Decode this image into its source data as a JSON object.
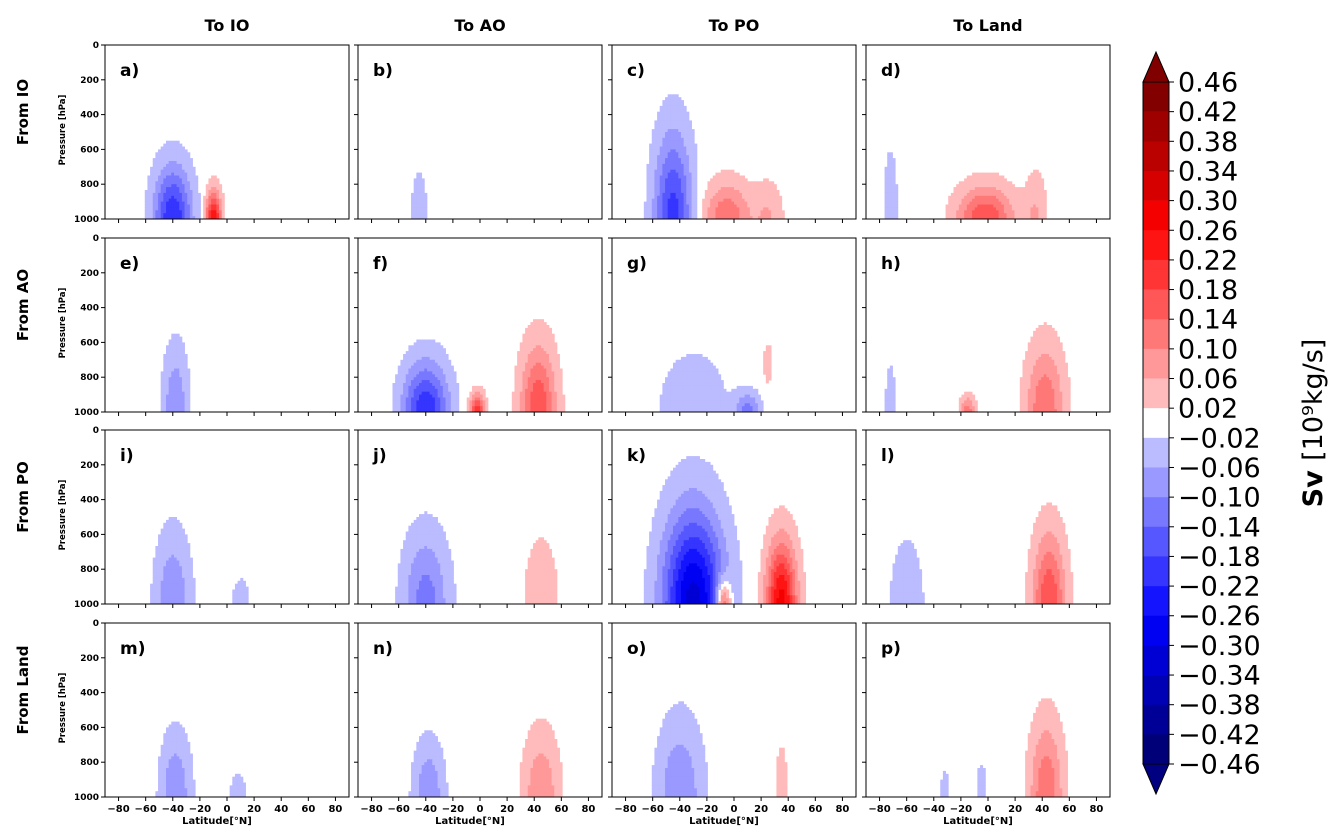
{
  "chart_data": {
    "type": "contour",
    "layout": "4x4 panel grid",
    "col_titles": [
      "To IO",
      "To AO",
      "To PO",
      "To Land"
    ],
    "row_titles": [
      "From IO",
      "From AO",
      "From PO",
      "From Land"
    ],
    "panel_labels": [
      "a)",
      "b)",
      "c)",
      "d)",
      "e)",
      "f)",
      "g)",
      "h)",
      "i)",
      "j)",
      "k)",
      "l)",
      "m)",
      "n)",
      "o)",
      "p)"
    ],
    "xlabel": "Latitude[$^\\circ N$]",
    "xlabel_display": "Latitude[°N]",
    "ylabel": "Pressure [hPa]",
    "xlim": [
      -90,
      90
    ],
    "ylim": [
      1000,
      0
    ],
    "x_ticks": [
      -80,
      -60,
      -40,
      -20,
      0,
      20,
      40,
      60,
      80
    ],
    "x_tick_labels": [
      "−80",
      "−60",
      "−40",
      "−20",
      "0",
      "20",
      "40",
      "60",
      "80"
    ],
    "y_ticks": [
      0,
      200,
      400,
      600,
      800,
      1000
    ],
    "y_tick_labels": [
      "0",
      "200",
      "400",
      "600",
      "800",
      "1000"
    ],
    "colorbar": {
      "label_bold": "Sv ",
      "label_units": "[10⁹kg/s]",
      "tick_labels": [
        "0.46",
        "0.42",
        "0.38",
        "0.34",
        "0.30",
        "0.26",
        "0.22",
        "0.18",
        "0.14",
        "0.10",
        "0.06",
        "0.02",
        "−0.02",
        "−0.06",
        "−0.10",
        "−0.14",
        "−0.18",
        "−0.22",
        "−0.26",
        "−0.30",
        "−0.34",
        "−0.38",
        "−0.42",
        "−0.46"
      ],
      "levels": [
        -0.46,
        -0.42,
        -0.38,
        -0.34,
        -0.3,
        -0.26,
        -0.22,
        -0.18,
        -0.14,
        -0.1,
        -0.06,
        -0.02,
        0.02,
        0.06,
        0.1,
        0.14,
        0.18,
        0.22,
        0.26,
        0.3,
        0.34,
        0.38,
        0.42,
        0.46
      ],
      "extend": "both",
      "colormap": "seismic"
    },
    "cells": [
      [
        {
          "id": "a",
          "cells": [
            {
              "x": -40,
              "p": 1000,
              "sx": 15,
              "sp": 320,
              "a": -0.22
            },
            {
              "x": -10,
              "p": 1000,
              "sx": 6,
              "sp": 170,
              "a": 0.26
            }
          ]
        },
        {
          "id": "b",
          "cells": [
            {
              "x": -45,
              "p": 1000,
              "sx": 7,
              "sp": 300,
              "a": -0.05
            }
          ]
        },
        {
          "id": "c",
          "cells": [
            {
              "x": -45,
              "p": 1000,
              "sx": 15,
              "sp": 520,
              "a": -0.2
            },
            {
              "x": -5,
              "p": 1000,
              "sx": 18,
              "sp": 220,
              "a": 0.14
            },
            {
              "x": 25,
              "p": 1000,
              "sx": 12,
              "sp": 230,
              "a": 0.06
            }
          ]
        },
        {
          "id": "d",
          "cells": [
            {
              "x": -72,
              "p": 1000,
              "sx": 6,
              "sp": 450,
              "a": -0.05
            },
            {
              "x": -2,
              "p": 1000,
              "sx": 22,
              "sp": 200,
              "a": 0.18
            },
            {
              "x": 35,
              "p": 1000,
              "sx": 9,
              "sp": 290,
              "a": 0.06
            }
          ]
        }
      ],
      [
        {
          "id": "e",
          "cells": [
            {
              "x": -38,
              "p": 1000,
              "sx": 10,
              "sp": 390,
              "a": -0.1
            }
          ]
        },
        {
          "id": "f",
          "cells": [
            {
              "x": -40,
              "p": 1000,
              "sx": 18,
              "sp": 300,
              "a": -0.22
            },
            {
              "x": -2,
              "p": 1000,
              "sx": 6,
              "sp": 110,
              "a": 0.22
            },
            {
              "x": 43,
              "p": 1000,
              "sx": 14,
              "sp": 400,
              "a": 0.18
            }
          ]
        },
        {
          "id": "g",
          "cells": [
            {
              "x": -30,
              "p": 980,
              "sx": 28,
              "sp": 360,
              "a": -0.05
            },
            {
              "x": 10,
              "p": 1000,
              "sx": 10,
              "sp": 120,
              "a": -0.12
            },
            {
              "x": 25,
              "p": 720,
              "sx": 4,
              "sp": 150,
              "a": 0.04
            }
          ]
        },
        {
          "id": "h",
          "cells": [
            {
              "x": -72,
              "p": 1000,
              "sx": 5,
              "sp": 360,
              "a": -0.04
            },
            {
              "x": -15,
              "p": 1000,
              "sx": 6,
              "sp": 100,
              "a": 0.12
            },
            {
              "x": 42,
              "p": 1000,
              "sx": 15,
              "sp": 400,
              "a": 0.14
            }
          ]
        }
      ],
      [
        {
          "id": "i",
          "cells": [
            {
              "x": -40,
              "p": 1000,
              "sx": 14,
              "sp": 430,
              "a": -0.1
            },
            {
              "x": 10,
              "p": 1000,
              "sx": 8,
              "sp": 190,
              "a": -0.04
            }
          ]
        },
        {
          "id": "j",
          "cells": [
            {
              "x": -40,
              "p": 1000,
              "sx": 18,
              "sp": 430,
              "a": -0.12
            },
            {
              "x": 45,
              "p": 1000,
              "sx": 13,
              "sp": 400,
              "a": 0.06
            }
          ]
        },
        {
          "id": "k",
          "cells": [
            {
              "x": -30,
              "p": 1000,
              "sx": 24,
              "sp": 560,
              "a": -0.32
            },
            {
              "x": -8,
              "p": 1000,
              "sx": 6,
              "sp": 150,
              "a": 0.22
            },
            {
              "x": 35,
              "p": 1000,
              "sx": 12,
              "sp": 380,
              "a": 0.28
            }
          ]
        },
        {
          "id": "l",
          "cells": [
            {
              "x": -60,
              "p": 1000,
              "sx": 14,
              "sp": 420,
              "a": -0.05
            },
            {
              "x": 45,
              "p": 1000,
              "sx": 13,
              "sp": 430,
              "a": 0.18
            }
          ]
        }
      ],
      [
        {
          "id": "m",
          "cells": [
            {
              "x": -38,
              "p": 1000,
              "sx": 12,
              "sp": 380,
              "a": -0.1
            },
            {
              "x": 8,
              "p": 1000,
              "sx": 8,
              "sp": 170,
              "a": -0.04
            }
          ]
        },
        {
          "id": "n",
          "cells": [
            {
              "x": -38,
              "p": 1000,
              "sx": 12,
              "sp": 330,
              "a": -0.1
            },
            {
              "x": 45,
              "p": 1000,
              "sx": 14,
              "sp": 390,
              "a": 0.1
            }
          ]
        },
        {
          "id": "o",
          "cells": [
            {
              "x": -40,
              "p": 1000,
              "sx": 18,
              "sp": 470,
              "a": -0.1
            },
            {
              "x": 35,
              "p": 1000,
              "sx": 5,
              "sp": 330,
              "a": 0.05
            }
          ]
        },
        {
          "id": "p",
          "cells": [
            {
              "x": -32,
              "p": 1000,
              "sx": 4,
              "sp": 200,
              "a": -0.04
            },
            {
              "x": -5,
              "p": 1000,
              "sx": 5,
              "sp": 250,
              "a": -0.04
            },
            {
              "x": 43,
              "p": 1000,
              "sx": 13,
              "sp": 450,
              "a": 0.14
            }
          ]
        }
      ]
    ]
  }
}
